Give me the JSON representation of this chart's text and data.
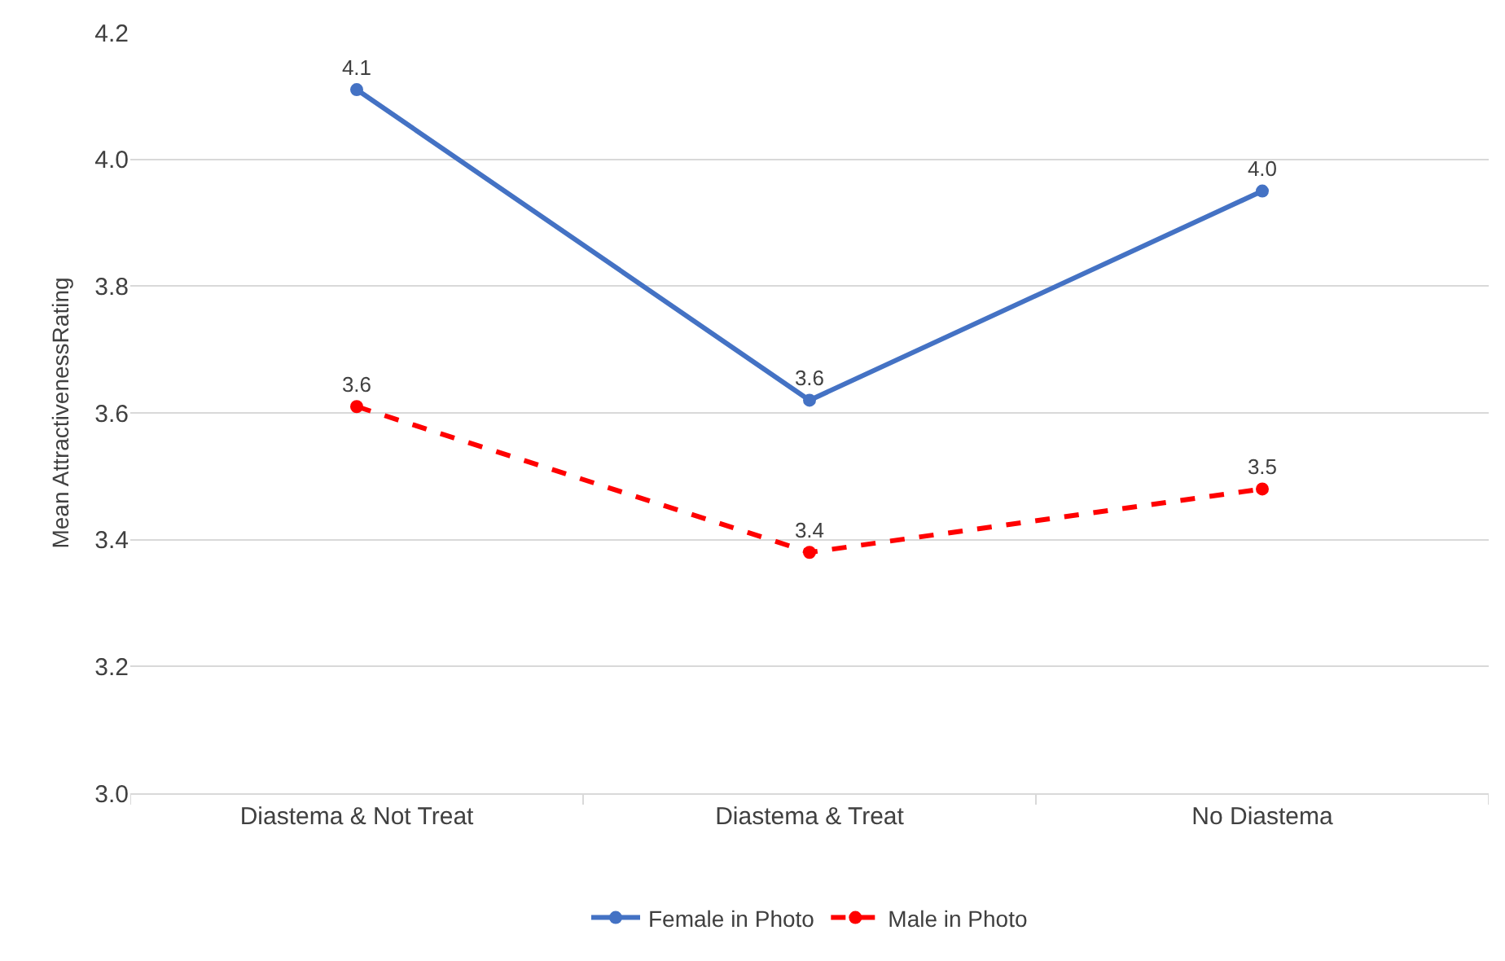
{
  "chart_data": {
    "type": "line",
    "ylabel": "Mean AttractivenessRating",
    "categories": [
      "Diastema & Not Treat",
      "Diastema & Treat",
      "No Diastema"
    ],
    "series": [
      {
        "name": "Female in Photo",
        "color": "#4472c4",
        "values": [
          4.11,
          3.62,
          3.95
        ],
        "value_labels": [
          "4.1",
          "3.6",
          "4.0"
        ],
        "line_style": "solid"
      },
      {
        "name": "Male in Photo",
        "color": "#ff0000",
        "values": [
          3.61,
          3.38,
          3.48
        ],
        "value_labels": [
          "3.6",
          "3.4",
          "3.5"
        ],
        "line_style": "dashed"
      }
    ],
    "ylim": [
      3.0,
      4.2
    ],
    "yticks": [
      {
        "value": 3.0,
        "label": "3.0"
      },
      {
        "value": 3.2,
        "label": "3.2"
      },
      {
        "value": 3.4,
        "label": "3.4"
      },
      {
        "value": 3.6,
        "label": "3.6"
      },
      {
        "value": 3.8,
        "label": "3.8"
      },
      {
        "value": 4.0,
        "label": "4.0"
      },
      {
        "value": 4.2,
        "label": "4.2"
      }
    ],
    "grid": "y",
    "legend": "bottom",
    "marker": "circle"
  }
}
